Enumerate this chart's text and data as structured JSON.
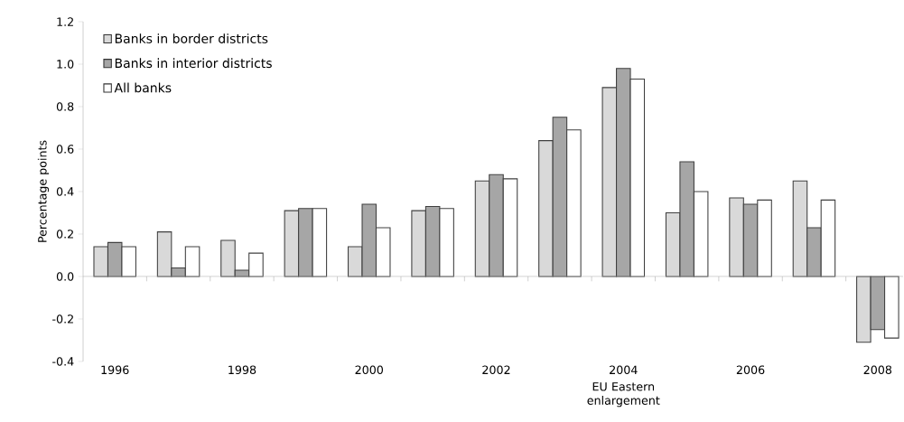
{
  "chart_data": {
    "type": "bar",
    "ylabel": "Percentage points",
    "categories": [
      "1996",
      null,
      "1998",
      null,
      "2000",
      null,
      "2002",
      null,
      "2004",
      null,
      "2006",
      null,
      "2008"
    ],
    "series": [
      {
        "name": "Banks in border districts",
        "color": "#d9d9d9",
        "values": [
          0.14,
          0.21,
          0.17,
          0.31,
          0.14,
          0.31,
          0.45,
          0.64,
          0.89,
          0.3,
          0.37,
          0.45,
          -0.31
        ]
      },
      {
        "name": "Banks in interior districts",
        "color": "#a6a6a6",
        "values": [
          0.16,
          0.04,
          0.03,
          0.32,
          0.34,
          0.33,
          0.48,
          0.75,
          0.98,
          0.54,
          0.34,
          0.23,
          -0.25
        ]
      },
      {
        "name": "All banks",
        "color": "#ffffff",
        "values": [
          0.14,
          0.14,
          0.11,
          0.32,
          0.23,
          0.32,
          0.46,
          0.69,
          0.93,
          0.4,
          0.36,
          0.36,
          -0.29
        ]
      }
    ],
    "ylim": [
      -0.4,
      1.2
    ],
    "yticks": [
      -0.4,
      -0.2,
      {
        "value": 0,
        "label": "0.0"
      },
      0.2,
      0.4,
      0.6,
      0.8,
      {
        "value": 1,
        "label": "1.0"
      },
      1.2
    ],
    "annotations": [
      "EU Eastern enlargement"
    ],
    "legend": "top left"
  }
}
